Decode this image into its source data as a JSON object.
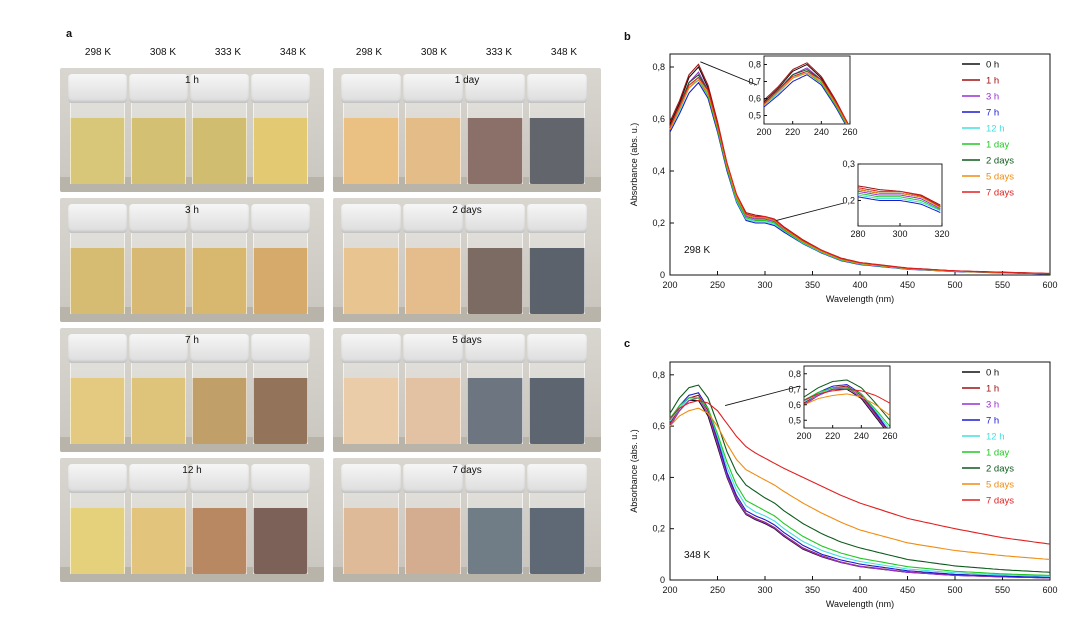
{
  "panel_a": {
    "letter": "a",
    "temps_left": [
      "298 K",
      "308 K",
      "333 K",
      "348 K"
    ],
    "temps_right": [
      "298 K",
      "308 K",
      "333 K",
      "348 K"
    ],
    "photos": [
      {
        "label": "1 h",
        "colors": [
          "#c9b244",
          "#c4a83e",
          "#c0a43a",
          "#d8b63c"
        ]
      },
      {
        "label": "3 h",
        "colors": [
          "#c7a13e",
          "#c89e3f",
          "#c99b38",
          "#c78a32"
        ]
      },
      {
        "label": "7 h",
        "colors": [
          "#d8b650",
          "#d2ac48",
          "#a87a30",
          "#6a3e1a"
        ]
      },
      {
        "label": "12 h",
        "colors": [
          "#dcbe48",
          "#d9ae4a",
          "#9c5a26",
          "#4a2418"
        ]
      },
      {
        "label": "1 day",
        "colors": [
          "#e2a954",
          "#d9a25a",
          "#5e3a2e",
          "#262a34"
        ]
      },
      {
        "label": "2 days",
        "colors": [
          "#e0ae66",
          "#dba460",
          "#4a3228",
          "#1c2634"
        ]
      },
      {
        "label": "5 days",
        "colors": [
          "#e2b988",
          "#d9ab80",
          "#344050",
          "#1e2a3a"
        ]
      },
      {
        "label": "7 days",
        "colors": [
          "#d2a072",
          "#c48e66",
          "#3a4a58",
          "#223040"
        ]
      }
    ]
  },
  "chart_data": [
    {
      "panel": "b",
      "type": "line",
      "condition": "298 K",
      "xlabel": "Wavelength (nm)",
      "ylabel": "Absorbance (abs. u.)",
      "xlim": [
        200,
        600
      ],
      "ylim": [
        0,
        0.85
      ],
      "xticks": [
        "200",
        "250",
        "300",
        "350",
        "400",
        "450",
        "500",
        "550",
        "600"
      ],
      "yticks": [
        "0",
        "0,2",
        "0,4",
        "0,6",
        "0,8"
      ],
      "x": [
        200,
        210,
        220,
        230,
        240,
        250,
        260,
        270,
        280,
        290,
        300,
        310,
        320,
        340,
        360,
        380,
        400,
        450,
        500,
        550,
        600
      ],
      "series": [
        {
          "name": "0 h",
          "color": "#111111",
          "values": [
            0.58,
            0.66,
            0.76,
            0.8,
            0.72,
            0.58,
            0.42,
            0.3,
            0.23,
            0.22,
            0.22,
            0.21,
            0.18,
            0.13,
            0.09,
            0.06,
            0.045,
            0.025,
            0.015,
            0.01,
            0.005
          ]
        },
        {
          "name": "1 h",
          "color": "#a01010",
          "values": [
            0.59,
            0.67,
            0.77,
            0.81,
            0.73,
            0.59,
            0.43,
            0.31,
            0.24,
            0.23,
            0.225,
            0.215,
            0.185,
            0.135,
            0.095,
            0.065,
            0.048,
            0.027,
            0.016,
            0.011,
            0.006
          ]
        },
        {
          "name": "3 h",
          "color": "#9a30d0",
          "values": [
            0.57,
            0.65,
            0.74,
            0.78,
            0.71,
            0.57,
            0.41,
            0.29,
            0.225,
            0.215,
            0.215,
            0.205,
            0.175,
            0.125,
            0.088,
            0.058,
            0.043,
            0.024,
            0.014,
            0.009,
            0.005
          ]
        },
        {
          "name": "7 h",
          "color": "#1a1ad0",
          "values": [
            0.55,
            0.62,
            0.7,
            0.74,
            0.68,
            0.55,
            0.4,
            0.28,
            0.21,
            0.2,
            0.2,
            0.19,
            0.165,
            0.12,
            0.084,
            0.055,
            0.04,
            0.022,
            0.013,
            0.008,
            0.004
          ]
        },
        {
          "name": "12 h",
          "color": "#40e0e0",
          "values": [
            0.56,
            0.63,
            0.72,
            0.76,
            0.7,
            0.56,
            0.41,
            0.285,
            0.215,
            0.205,
            0.205,
            0.195,
            0.17,
            0.122,
            0.086,
            0.057,
            0.042,
            0.023,
            0.014,
            0.009,
            0.005
          ]
        },
        {
          "name": "1 day",
          "color": "#22c822",
          "values": [
            0.56,
            0.64,
            0.72,
            0.75,
            0.69,
            0.56,
            0.41,
            0.29,
            0.22,
            0.21,
            0.21,
            0.2,
            0.172,
            0.125,
            0.088,
            0.058,
            0.043,
            0.024,
            0.014,
            0.009,
            0.005
          ]
        },
        {
          "name": "2 days",
          "color": "#0d5a1a",
          "values": [
            0.57,
            0.65,
            0.74,
            0.77,
            0.71,
            0.57,
            0.42,
            0.3,
            0.23,
            0.22,
            0.22,
            0.21,
            0.18,
            0.13,
            0.092,
            0.061,
            0.045,
            0.025,
            0.015,
            0.01,
            0.005
          ]
        },
        {
          "name": "5 days",
          "color": "#f08c10",
          "values": [
            0.56,
            0.64,
            0.72,
            0.75,
            0.7,
            0.57,
            0.42,
            0.3,
            0.23,
            0.22,
            0.22,
            0.21,
            0.178,
            0.128,
            0.09,
            0.06,
            0.044,
            0.024,
            0.014,
            0.009,
            0.005
          ]
        },
        {
          "name": "7 days",
          "color": "#e02020",
          "values": [
            0.57,
            0.65,
            0.73,
            0.76,
            0.71,
            0.58,
            0.43,
            0.31,
            0.235,
            0.225,
            0.225,
            0.213,
            0.182,
            0.132,
            0.094,
            0.063,
            0.047,
            0.026,
            0.016,
            0.01,
            0.006
          ]
        }
      ],
      "insets": [
        {
          "xlim": [
            200,
            260
          ],
          "ylim": [
            0.45,
            0.85
          ],
          "xticks": [
            "200",
            "220",
            "240",
            "260"
          ],
          "yticks": [
            "0,5",
            "0,6",
            "0,7",
            "0,8"
          ]
        },
        {
          "xlim": [
            280,
            320
          ],
          "ylim": [
            0.13,
            0.3
          ],
          "xticks": [
            "280",
            "300",
            "320"
          ],
          "yticks": [
            "0,2",
            "0,3"
          ]
        }
      ]
    },
    {
      "panel": "c",
      "type": "line",
      "condition": "348 K",
      "xlabel": "Wavelength (nm)",
      "ylabel": "Absorbance (abs. u.)",
      "xlim": [
        200,
        600
      ],
      "ylim": [
        0,
        0.85
      ],
      "xticks": [
        "200",
        "250",
        "300",
        "350",
        "400",
        "450",
        "500",
        "550",
        "600"
      ],
      "yticks": [
        "0",
        "0,2",
        "0,4",
        "0,6",
        "0,8"
      ],
      "x": [
        200,
        210,
        220,
        230,
        240,
        250,
        260,
        270,
        280,
        290,
        300,
        310,
        320,
        340,
        360,
        380,
        400,
        450,
        500,
        550,
        600
      ],
      "series": [
        {
          "name": "0 h",
          "color": "#111111",
          "values": [
            0.6,
            0.66,
            0.7,
            0.7,
            0.64,
            0.52,
            0.4,
            0.31,
            0.255,
            0.235,
            0.22,
            0.2,
            0.17,
            0.12,
            0.09,
            0.068,
            0.052,
            0.03,
            0.018,
            0.012,
            0.008
          ]
        },
        {
          "name": "1 h",
          "color": "#a01010",
          "values": [
            0.61,
            0.67,
            0.71,
            0.72,
            0.66,
            0.54,
            0.41,
            0.32,
            0.26,
            0.24,
            0.225,
            0.205,
            0.175,
            0.125,
            0.094,
            0.07,
            0.054,
            0.031,
            0.019,
            0.013,
            0.009
          ]
        },
        {
          "name": "3 h",
          "color": "#9a30d0",
          "values": [
            0.6,
            0.66,
            0.7,
            0.71,
            0.65,
            0.53,
            0.405,
            0.315,
            0.258,
            0.238,
            0.223,
            0.203,
            0.173,
            0.123,
            0.092,
            0.069,
            0.053,
            0.03,
            0.018,
            0.012,
            0.008
          ]
        },
        {
          "name": "7 h",
          "color": "#1a1ad0",
          "values": [
            0.62,
            0.68,
            0.72,
            0.73,
            0.67,
            0.55,
            0.42,
            0.33,
            0.27,
            0.25,
            0.235,
            0.215,
            0.185,
            0.135,
            0.1,
            0.078,
            0.062,
            0.036,
            0.022,
            0.015,
            0.01
          ]
        },
        {
          "name": "12 h",
          "color": "#40e0e0",
          "values": [
            0.62,
            0.67,
            0.71,
            0.71,
            0.67,
            0.56,
            0.44,
            0.35,
            0.29,
            0.265,
            0.25,
            0.23,
            0.2,
            0.15,
            0.115,
            0.09,
            0.072,
            0.043,
            0.028,
            0.02,
            0.014
          ]
        },
        {
          "name": "1 day",
          "color": "#22c822",
          "values": [
            0.63,
            0.68,
            0.71,
            0.71,
            0.67,
            0.57,
            0.46,
            0.37,
            0.31,
            0.29,
            0.27,
            0.25,
            0.22,
            0.17,
            0.132,
            0.105,
            0.085,
            0.052,
            0.034,
            0.024,
            0.018
          ]
        },
        {
          "name": "2 days",
          "color": "#0d5a1a",
          "values": [
            0.65,
            0.71,
            0.75,
            0.76,
            0.71,
            0.61,
            0.5,
            0.42,
            0.37,
            0.345,
            0.32,
            0.3,
            0.27,
            0.22,
            0.18,
            0.148,
            0.125,
            0.08,
            0.055,
            0.04,
            0.03
          ]
        },
        {
          "name": "5 days",
          "color": "#f08c10",
          "values": [
            0.6,
            0.64,
            0.66,
            0.67,
            0.65,
            0.6,
            0.53,
            0.47,
            0.43,
            0.41,
            0.39,
            0.37,
            0.345,
            0.3,
            0.26,
            0.225,
            0.195,
            0.145,
            0.115,
            0.095,
            0.08
          ]
        },
        {
          "name": "7 days",
          "color": "#e02020",
          "values": [
            0.63,
            0.67,
            0.69,
            0.7,
            0.69,
            0.66,
            0.61,
            0.56,
            0.52,
            0.495,
            0.475,
            0.455,
            0.435,
            0.4,
            0.365,
            0.33,
            0.3,
            0.24,
            0.2,
            0.165,
            0.14
          ]
        }
      ],
      "insets": [
        {
          "xlim": [
            200,
            260
          ],
          "ylim": [
            0.45,
            0.85
          ],
          "xticks": [
            "200",
            "220",
            "240",
            "260"
          ],
          "yticks": [
            "0,5",
            "0,6",
            "0,7",
            "0,8"
          ]
        }
      ]
    }
  ]
}
